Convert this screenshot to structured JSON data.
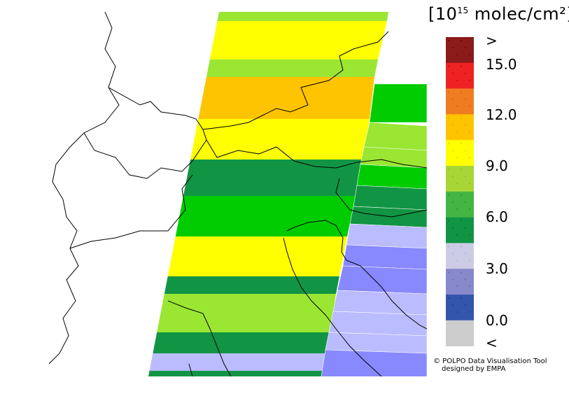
{
  "legend": {
    "unit_base": "10",
    "unit_exp": "15",
    "unit_rest": " molec/cm²",
    "bracket_open": "[",
    "bracket_close": "]",
    "swatches": [
      {
        "color": "#8b1a1a",
        "hatch": "#6a0f0f"
      },
      {
        "color": "#ee2222",
        "hatch": "#c01414"
      },
      {
        "color": "#f07c22",
        "hatch": "#d86a14"
      },
      {
        "color": "#ffc400",
        "hatch": "#eeb000"
      },
      {
        "color": "#ffff00",
        "hatch": "#e6e600"
      },
      {
        "color": "#a8d636",
        "hatch": "#94c22a"
      },
      {
        "color": "#44b544",
        "hatch": "#309a30"
      },
      {
        "color": "#119544",
        "hatch": "#0a7a36"
      },
      {
        "color": "#cccce6",
        "hatch": "#b6b6d8"
      },
      {
        "color": "#8888cc",
        "hatch": "#7070b8"
      },
      {
        "color": "#3355aa",
        "hatch": "#24449a"
      },
      {
        "color": "#cccccc",
        "hatch": "#cccccc"
      }
    ],
    "labels": [
      ">",
      "15.0",
      "12.0",
      "9.0",
      "6.0",
      "3.0",
      "0.0",
      "<"
    ]
  },
  "credit": {
    "line1": "© POLPO Data Visualisation Tool",
    "line2": "designed by EMPA"
  },
  "colors": {
    "yellow": "#ffff00",
    "light_green": "#9ae633",
    "orange": "#ffc400",
    "green": "#00cc00",
    "dark_green": "#119544",
    "lavender": "#bbbbff",
    "periwinkle": "#8888ff",
    "outside": "#ffffff"
  }
}
